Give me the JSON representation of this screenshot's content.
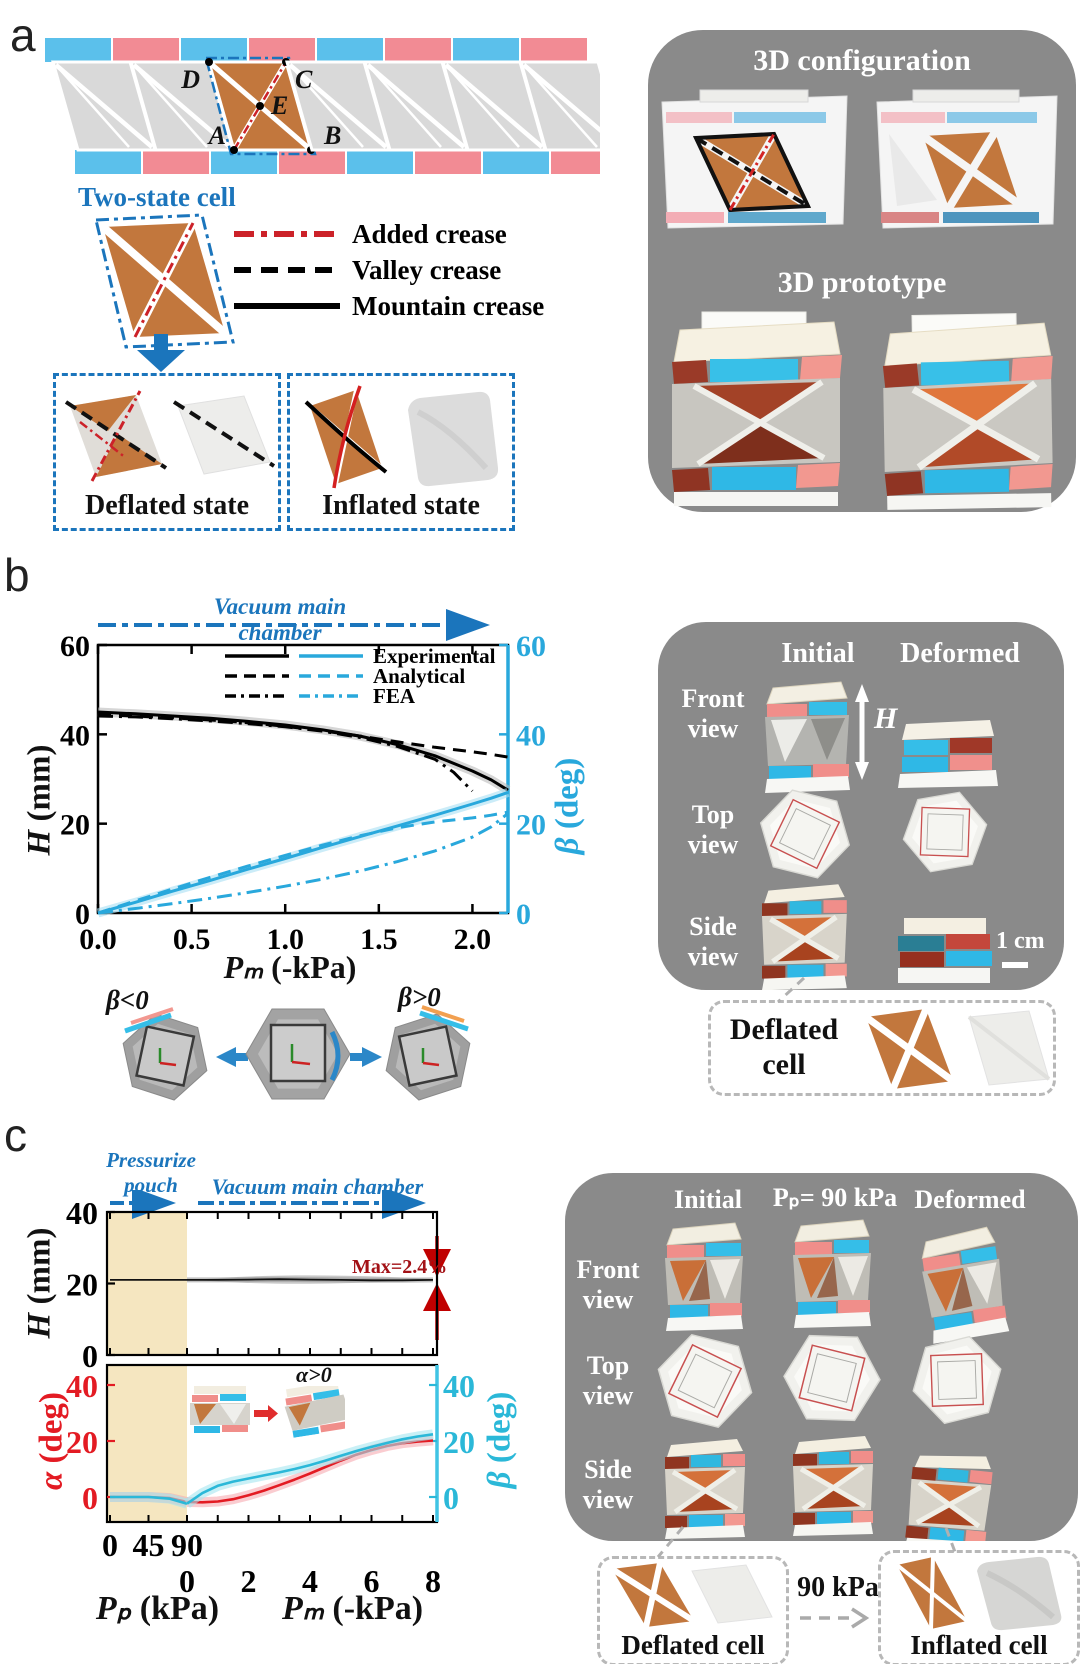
{
  "colors": {
    "strip_blue": "#5bc0eb",
    "strip_pink": "#f28b94",
    "cell_orange": "#c2773d",
    "panel_gray": "#8a8a8a",
    "steel_blue": "#1b75bc",
    "crease_red": "#cc2229",
    "chart_blue": "#29a8dc",
    "alpha_red": "#e31b23",
    "beta_cyan": "#2bb8d8",
    "beige": "#f5e6c0",
    "dark_red": "#a31116"
  },
  "panel_a": {
    "label": "a",
    "vertices": {
      "d": "D",
      "c": "C",
      "e": "E",
      "a": "A",
      "b": "B"
    },
    "two_state_cell_label": "Two-state cell",
    "legend": [
      {
        "name": "added-crease",
        "label": "Added crease"
      },
      {
        "name": "valley-crease",
        "label": "Valley crease"
      },
      {
        "name": "mountain-crease",
        "label": "Mountain crease"
      }
    ],
    "deflated_state_label": "Deflated state",
    "inflated_state_label": "Inflated state",
    "right_panel": {
      "config_title": "3D configuration",
      "prototype_title": "3D prototype"
    }
  },
  "panel_b": {
    "label": "b",
    "arrow_label": "Vacuum main chamber",
    "ylabel_left_symbol": "H",
    "ylabel_left_unit": " (mm)",
    "ylabel_right_symbol": "β",
    "ylabel_right_unit": " (deg)",
    "xlabel_symbol": "Pₘ",
    "xlabel_unit": " (-kPa)",
    "beta_negative": "β<0",
    "beta_positive": "β>0",
    "right_panel": {
      "col_initial": "Initial",
      "col_deformed": "Deformed",
      "row_front": "Front view",
      "row_top": "Top view",
      "row_side": "Side view",
      "height_symbol": "H",
      "scale_label": "1 cm"
    },
    "deflated_cell_label": "Deflated cell"
  },
  "panel_c": {
    "label": "c",
    "arrow_pouch": "Pressurize pouch",
    "arrow_vacuum": "Vacuum main chamber",
    "max_annotation": "Max=2.4%",
    "alpha_positive": "α>0",
    "ylabel_h_symbol": "H",
    "ylabel_h_unit": " (mm)",
    "ylabel_alpha_symbol": "α",
    "ylabel_alpha_unit": " (deg)",
    "ylabel_beta_symbol": "β",
    "ylabel_beta_unit": " (deg)",
    "xlabel_p_symbol": "Pₚ",
    "xlabel_p_unit": " (kPa)",
    "xlabel_m_symbol": "Pₘ",
    "xlabel_m_unit": " (-kPa)",
    "right_panel": {
      "col_initial": "Initial",
      "col_pressure": "Pₚ= 90 kPa",
      "col_deformed": "Deformed",
      "row_front": "Front view",
      "row_top": "Top view",
      "row_side": "Side view"
    },
    "deflated_cell_label": "Deflated cell",
    "inflated_cell_label": "Inflated cell",
    "pressure_label": "90 kPa"
  },
  "chart_data": [
    {
      "id": "panel-b-chart",
      "type": "line",
      "title": "Vacuum main chamber",
      "xlabel": "Pₘ (-kPa)",
      "ylabel_left": "H (mm)",
      "ylabel_right": "β (deg)",
      "xlim": [
        0,
        2.19
      ],
      "ylim_left": [
        0,
        60
      ],
      "ylim_right": [
        0,
        60
      ],
      "xticks": [
        "0.0",
        "0.5",
        "1.0",
        "1.5",
        "2.0"
      ],
      "yticks_left": [
        "0",
        "20",
        "40",
        "60"
      ],
      "yticks_right": [
        "0",
        "20",
        "40",
        "60"
      ],
      "legend": [
        "Experimental",
        "Analytical",
        "FEA"
      ],
      "legend_position": "top-right",
      "series": [
        {
          "name": "H-experimental",
          "axis": "left",
          "style": "solid",
          "color": "#000000",
          "band": "#bbbbbb",
          "x": [
            0,
            0.2,
            0.4,
            0.6,
            0.8,
            1.0,
            1.2,
            1.4,
            1.6,
            1.8,
            2.0,
            2.1,
            2.19
          ],
          "values": [
            45,
            44.6,
            44.1,
            43.6,
            42.9,
            42.1,
            41.0,
            39.6,
            37.7,
            35.2,
            31.8,
            29.8,
            27.5
          ]
        },
        {
          "name": "H-analytical",
          "axis": "left",
          "style": "dashed",
          "color": "#000000",
          "x": [
            0,
            0.2,
            0.4,
            0.6,
            0.8,
            1.0,
            1.2,
            1.4,
            1.6,
            1.8,
            2.0,
            2.1,
            2.19
          ],
          "values": [
            44.4,
            44.1,
            43.7,
            43.2,
            42.6,
            41.8,
            40.8,
            39.6,
            38.3,
            37.1,
            36.1,
            35.5,
            34.9
          ]
        },
        {
          "name": "H-fea",
          "axis": "left",
          "style": "dashdot",
          "color": "#000000",
          "x": [
            0,
            0.2,
            0.4,
            0.6,
            0.8,
            1.0,
            1.2,
            1.4,
            1.6,
            1.8,
            1.9,
            2.0
          ],
          "values": [
            44.1,
            43.9,
            43.5,
            43.0,
            42.4,
            41.7,
            40.7,
            39.3,
            37.3,
            34.4,
            31.5,
            27.3
          ]
        },
        {
          "name": "beta-experimental",
          "axis": "right",
          "style": "solid",
          "color": "#29a8dc",
          "band": "#a8dff4",
          "x": [
            0,
            0.2,
            0.4,
            0.6,
            0.8,
            1.0,
            1.2,
            1.4,
            1.6,
            1.8,
            2.0,
            2.1,
            2.19
          ],
          "values": [
            0,
            2.4,
            4.9,
            7.3,
            9.8,
            12.2,
            14.7,
            17.1,
            19.5,
            21.9,
            24.4,
            25.7,
            27
          ]
        },
        {
          "name": "beta-analytical",
          "axis": "right",
          "style": "dashed",
          "color": "#29a8dc",
          "x": [
            0,
            0.2,
            0.4,
            0.6,
            0.8,
            1.0,
            1.2,
            1.4,
            1.6,
            1.8,
            2.0,
            2.1,
            2.19
          ],
          "values": [
            0,
            2.7,
            5.4,
            8.0,
            10.5,
            12.9,
            15.2,
            17.3,
            19.1,
            20.4,
            21.3,
            21.9,
            22.6
          ]
        },
        {
          "name": "beta-fea",
          "axis": "right",
          "style": "dashdot",
          "color": "#29a8dc",
          "x": [
            0,
            0.2,
            0.4,
            0.6,
            0.8,
            1.0,
            1.2,
            1.4,
            1.6,
            1.8,
            2.0,
            2.1,
            2.19
          ],
          "values": [
            0,
            1.0,
            2.1,
            3.3,
            4.6,
            6.0,
            7.6,
            9.4,
            11.5,
            13.9,
            17.0,
            19.3,
            22.3
          ]
        }
      ]
    },
    {
      "id": "panel-c-height",
      "type": "line",
      "ylabel": "H (mm)",
      "ylim": [
        0,
        40
      ],
      "yticks": [
        "0",
        "20",
        "40"
      ],
      "x_axes": {
        "pp": {
          "label": "Pₚ (kPa)",
          "lim": [
            0,
            90
          ],
          "ticks": [
            "0",
            "45",
            "90"
          ]
        },
        "pm": {
          "label": "Pₘ (-kPa)",
          "lim": [
            0,
            8
          ],
          "ticks": [
            "0",
            "2",
            "4",
            "6",
            "8"
          ]
        }
      },
      "annotation": "Max=2.4%",
      "series": [
        {
          "name": "H-pouch",
          "xscale": "pp",
          "style": "solid",
          "color": "#111111",
          "x": [
            0,
            45,
            90
          ],
          "values": [
            21,
            21,
            21
          ]
        },
        {
          "name": "H-vacuum",
          "xscale": "pm",
          "style": "solid",
          "color": "#111111",
          "band": "#999999",
          "x": [
            0,
            1,
            2,
            3,
            4,
            5,
            6,
            7,
            8
          ],
          "values": [
            21,
            21,
            21.1,
            21.2,
            21.1,
            21,
            20.9,
            20.9,
            21
          ]
        }
      ]
    },
    {
      "id": "panel-c-angles",
      "type": "line",
      "ylabel_left": "α (deg)",
      "ylabel_right": "β (deg)",
      "ylim": [
        -9,
        45
      ],
      "yticks_left": [
        "0",
        "20",
        "40"
      ],
      "yticks_right": [
        "0",
        "20",
        "40"
      ],
      "series": [
        {
          "name": "alpha-pouch",
          "xscale": "pp",
          "style": "solid",
          "color": "#e31b23",
          "band": "#f6aab1",
          "x": [
            0,
            20,
            45,
            70,
            90
          ],
          "values": [
            0,
            0,
            0,
            -0.4,
            -1.8
          ]
        },
        {
          "name": "alpha-vacuum",
          "xscale": "pm",
          "style": "solid",
          "color": "#e31b23",
          "band": "#f6aab1",
          "x": [
            0,
            0.5,
            1,
            1.5,
            2,
            2.5,
            3,
            3.5,
            4,
            4.5,
            5,
            5.5,
            6,
            6.5,
            7,
            7.5,
            8
          ],
          "values": [
            -1.8,
            -1.9,
            -1.6,
            -0.8,
            0.6,
            2.3,
            4.2,
            6.2,
            8.4,
            10.7,
            13,
            15.1,
            16.8,
            18.2,
            19.2,
            19.8,
            20.2
          ]
        },
        {
          "name": "beta-pouch",
          "xscale": "pp",
          "style": "solid",
          "color": "#2bb8d8",
          "band": "#a5e6f0",
          "x": [
            0,
            20,
            45,
            70,
            90
          ],
          "values": [
            0,
            0,
            0,
            -0.6,
            -2.4
          ]
        },
        {
          "name": "beta-vacuum",
          "xscale": "pm",
          "style": "solid",
          "color": "#2bb8d8",
          "band": "#a5e6f0",
          "x": [
            0,
            0.5,
            1,
            1.5,
            2,
            2.5,
            3,
            3.5,
            4,
            4.5,
            5,
            5.5,
            6,
            6.5,
            7,
            7.5,
            8
          ],
          "values": [
            -2.4,
            1.4,
            4,
            5.5,
            6.6,
            7.7,
            8.8,
            10,
            11.4,
            13,
            14.7,
            16.4,
            17.9,
            19.3,
            20.6,
            21.6,
            22.4
          ]
        }
      ]
    }
  ]
}
